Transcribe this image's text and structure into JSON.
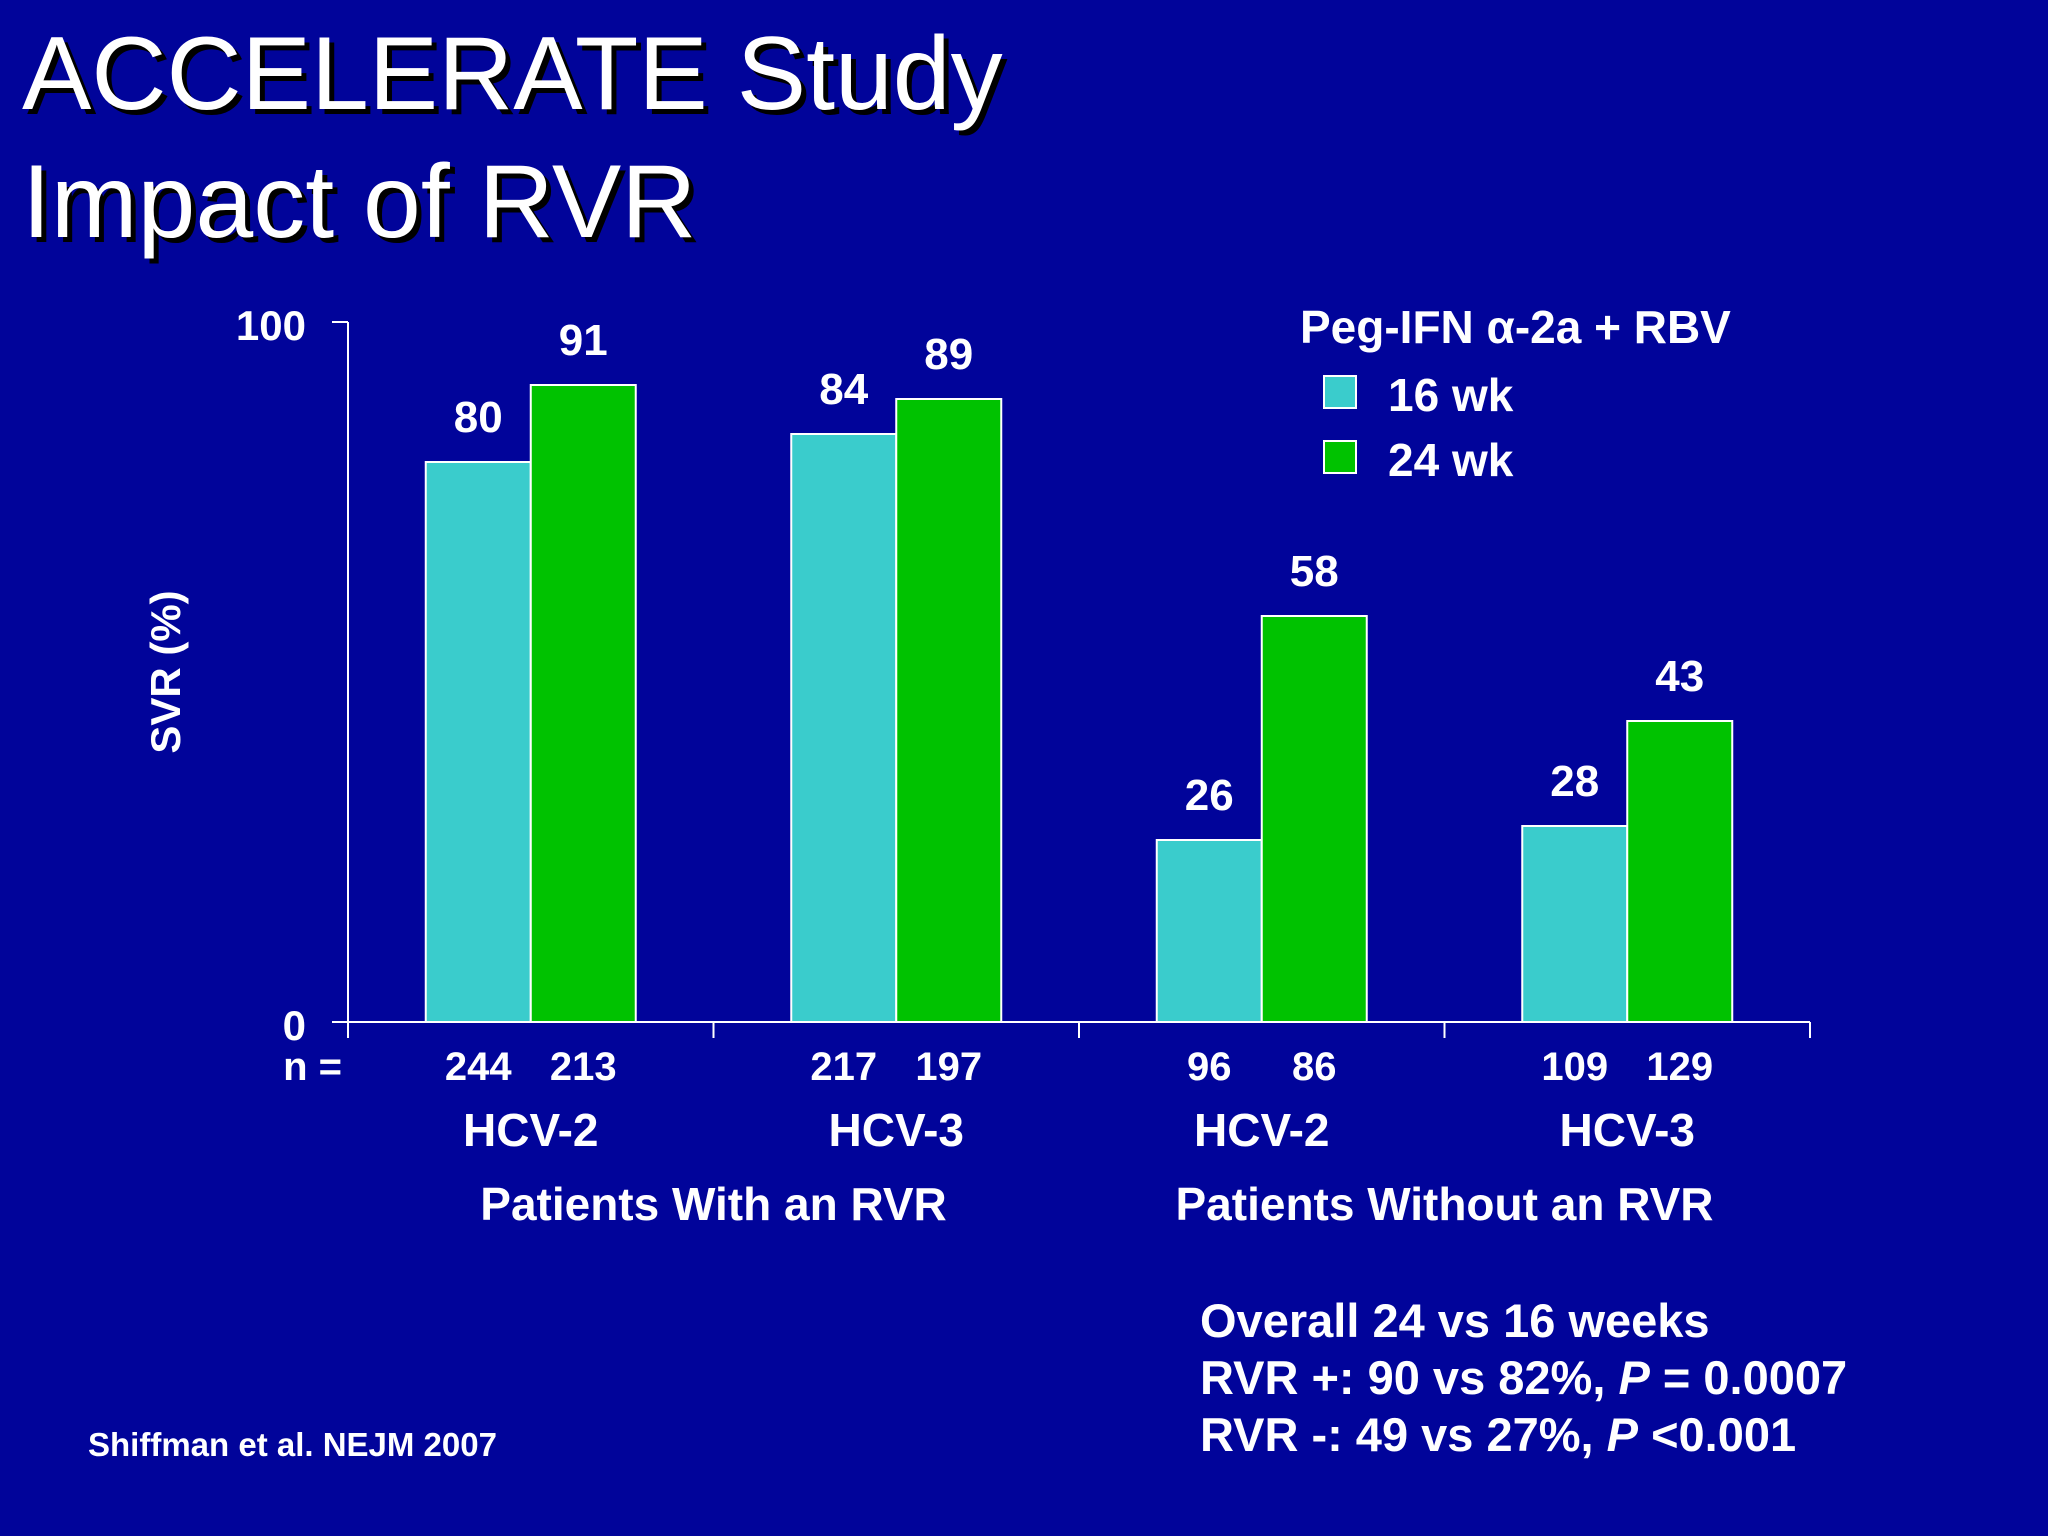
{
  "slide": {
    "title_line1": "ACCELERATE Study",
    "title_line2": "Impact of RVR",
    "background_color": "#01049A"
  },
  "legend": {
    "title": "Peg-IFN α-2a + RBV",
    "items": [
      {
        "label": "16 wk",
        "color": "#3ACCCC"
      },
      {
        "label": "24 wk",
        "color": "#00C200"
      }
    ]
  },
  "chart_data": {
    "type": "bar",
    "ylabel": "SVR (%)",
    "ylim": [
      0,
      100
    ],
    "yticks": [
      "0",
      "100"
    ],
    "n_label": "n =",
    "categories": [
      "HCV-2",
      "HCV-3",
      "HCV-2",
      "HCV-3"
    ],
    "groups": [
      {
        "label": "Patients With an RVR",
        "categories": [
          0,
          1
        ]
      },
      {
        "label": "Patients Without an RVR",
        "categories": [
          2,
          3
        ]
      }
    ],
    "series": [
      {
        "name": "16 wk",
        "color": "#3ACCCC",
        "values": [
          80,
          84,
          26,
          28
        ],
        "n": [
          "244",
          "217",
          "96",
          "109"
        ]
      },
      {
        "name": "24 wk",
        "color": "#00C200",
        "values": [
          91,
          89,
          58,
          43
        ],
        "n": [
          "213",
          "197",
          "86",
          "129"
        ]
      }
    ],
    "grid": false,
    "legend_position": "top-right"
  },
  "stats": {
    "heading": "Overall 24 vs 16 weeks",
    "line1_prefix": "RVR +: 90 vs 82%, ",
    "line1_p": "P",
    "line1_suffix": " = 0.0007",
    "line2_prefix": "RVR -: 49 vs 27%, ",
    "line2_p": "P",
    "line2_suffix": " <0.001"
  },
  "citation": "Shiffman et al. NEJM 2007"
}
